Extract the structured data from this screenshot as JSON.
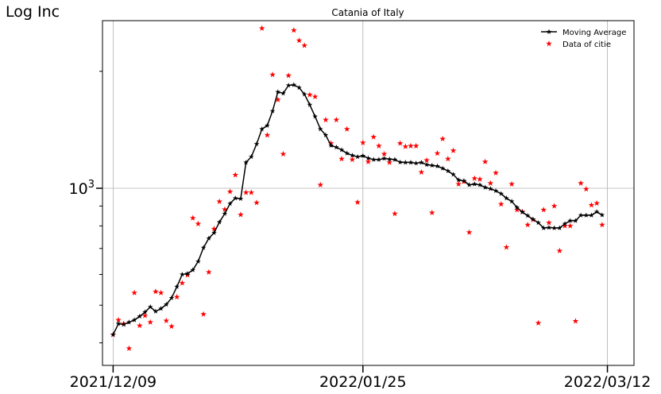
{
  "corner_label": "Log Inc",
  "chart_data": {
    "type": "line",
    "title": "Catania of Italy",
    "xlabel": "",
    "ylabel": "",
    "y_scale": "log",
    "grid": true,
    "legend_placement": "top-right",
    "x_ticks": [
      "2021/12/09",
      "2022/01/25",
      "2022/03/12"
    ],
    "y_ticks": [
      {
        "value": 1000,
        "base": "10",
        "exp": "3"
      }
    ],
    "xlim": [
      "2021/12/07",
      "2022/03/17"
    ],
    "ylim": [
      350,
      2700
    ],
    "series": [
      {
        "name": "Moving Average",
        "color": "#000000",
        "marker": "star",
        "points": [
          [
            "2021/12/09",
            420
          ],
          [
            "2021/12/10",
            448
          ],
          [
            "2021/12/11",
            446
          ],
          [
            "2021/12/12",
            452
          ],
          [
            "2021/12/13",
            458
          ],
          [
            "2021/12/14",
            468
          ],
          [
            "2021/12/15",
            480
          ],
          [
            "2021/12/16",
            495
          ],
          [
            "2021/12/17",
            482
          ],
          [
            "2021/12/18",
            490
          ],
          [
            "2021/12/19",
            502
          ],
          [
            "2021/12/20",
            522
          ],
          [
            "2021/12/21",
            558
          ],
          [
            "2021/12/22",
            600
          ],
          [
            "2021/12/23",
            603
          ],
          [
            "2021/12/24",
            616
          ],
          [
            "2021/12/25",
            648
          ],
          [
            "2021/12/26",
            703
          ],
          [
            "2021/12/27",
            743
          ],
          [
            "2021/12/28",
            768
          ],
          [
            "2021/12/29",
            818
          ],
          [
            "2021/12/30",
            860
          ],
          [
            "2021/12/31",
            913
          ],
          [
            "2022/01/01",
            943
          ],
          [
            "2022/01/02",
            940
          ],
          [
            "2022/01/03",
            1165
          ],
          [
            "2022/01/04",
            1205
          ],
          [
            "2022/01/05",
            1300
          ],
          [
            "2022/01/06",
            1420
          ],
          [
            "2022/01/07",
            1450
          ],
          [
            "2022/01/08",
            1580
          ],
          [
            "2022/01/09",
            1770
          ],
          [
            "2022/01/10",
            1755
          ],
          [
            "2022/01/11",
            1840
          ],
          [
            "2022/01/12",
            1845
          ],
          [
            "2022/01/13",
            1815
          ],
          [
            "2022/01/14",
            1745
          ],
          [
            "2022/01/15",
            1640
          ],
          [
            "2022/01/16",
            1530
          ],
          [
            "2022/01/17",
            1420
          ],
          [
            "2022/01/18",
            1370
          ],
          [
            "2022/01/19",
            1288
          ],
          [
            "2022/01/20",
            1275
          ],
          [
            "2022/01/21",
            1255
          ],
          [
            "2022/01/22",
            1230
          ],
          [
            "2022/01/23",
            1215
          ],
          [
            "2022/01/24",
            1205
          ],
          [
            "2022/01/25",
            1212
          ],
          [
            "2022/01/26",
            1195
          ],
          [
            "2022/01/27",
            1185
          ],
          [
            "2022/01/28",
            1185
          ],
          [
            "2022/01/29",
            1193
          ],
          [
            "2022/01/30",
            1188
          ],
          [
            "2022/01/31",
            1185
          ],
          [
            "2022/02/01",
            1167
          ],
          [
            "2022/02/02",
            1165
          ],
          [
            "2022/02/03",
            1165
          ],
          [
            "2022/02/04",
            1160
          ],
          [
            "2022/02/05",
            1165
          ],
          [
            "2022/02/06",
            1150
          ],
          [
            "2022/02/07",
            1145
          ],
          [
            "2022/02/08",
            1140
          ],
          [
            "2022/02/09",
            1125
          ],
          [
            "2022/02/10",
            1108
          ],
          [
            "2022/02/11",
            1085
          ],
          [
            "2022/02/12",
            1050
          ],
          [
            "2022/02/13",
            1045
          ],
          [
            "2022/02/14",
            1020
          ],
          [
            "2022/02/15",
            1025
          ],
          [
            "2022/02/16",
            1020
          ],
          [
            "2022/02/17",
            1005
          ],
          [
            "2022/02/18",
            997
          ],
          [
            "2022/02/19",
            985
          ],
          [
            "2022/02/20",
            968
          ],
          [
            "2022/02/21",
            943
          ],
          [
            "2022/02/22",
            925
          ],
          [
            "2022/02/23",
            892
          ],
          [
            "2022/02/24",
            868
          ],
          [
            "2022/02/25",
            850
          ],
          [
            "2022/02/26",
            832
          ],
          [
            "2022/02/27",
            815
          ],
          [
            "2022/02/28",
            790
          ],
          [
            "2022/03/01",
            792
          ],
          [
            "2022/03/02",
            790
          ],
          [
            "2022/03/03",
            790
          ],
          [
            "2022/03/04",
            810
          ],
          [
            "2022/03/05",
            825
          ],
          [
            "2022/03/06",
            825
          ],
          [
            "2022/03/07",
            852
          ],
          [
            "2022/03/08",
            852
          ],
          [
            "2022/03/09",
            852
          ],
          [
            "2022/03/10",
            870
          ],
          [
            "2022/03/11",
            853
          ]
        ]
      },
      {
        "name": "Data of citie",
        "color": "#ff0000",
        "marker": "star",
        "points": [
          [
            "2021/12/09",
            420
          ],
          [
            "2021/12/10",
            458
          ],
          [
            "2021/12/11",
            448
          ],
          [
            "2021/12/12",
            387
          ],
          [
            "2021/12/13",
            538
          ],
          [
            "2021/12/14",
            443
          ],
          [
            "2021/12/15",
            470
          ],
          [
            "2021/12/16",
            452
          ],
          [
            "2021/12/17",
            542
          ],
          [
            "2021/12/18",
            538
          ],
          [
            "2021/12/19",
            456
          ],
          [
            "2021/12/20",
            441
          ],
          [
            "2021/12/21",
            525
          ],
          [
            "2021/12/22",
            570
          ],
          [
            "2021/12/23",
            598
          ],
          [
            "2021/12/24",
            838
          ],
          [
            "2021/12/25",
            810
          ],
          [
            "2021/12/26",
            474
          ],
          [
            "2021/12/27",
            608
          ],
          [
            "2021/12/28",
            786
          ],
          [
            "2021/12/29",
            924
          ],
          [
            "2021/12/30",
            882
          ],
          [
            "2021/12/31",
            980
          ],
          [
            "2022/01/01",
            1082
          ],
          [
            "2022/01/02",
            855
          ],
          [
            "2022/01/03",
            975
          ],
          [
            "2022/01/04",
            975
          ],
          [
            "2022/01/05",
            918
          ],
          [
            "2022/01/06",
            2580
          ],
          [
            "2022/01/07",
            1370
          ],
          [
            "2022/01/08",
            1960
          ],
          [
            "2022/01/09",
            1690
          ],
          [
            "2022/01/10",
            1225
          ],
          [
            "2022/01/11",
            1950
          ],
          [
            "2022/01/12",
            2550
          ],
          [
            "2022/01/13",
            2400
          ],
          [
            "2022/01/14",
            2330
          ],
          [
            "2022/01/15",
            1740
          ],
          [
            "2022/01/16",
            1720
          ],
          [
            "2022/01/17",
            1020
          ],
          [
            "2022/01/18",
            1500
          ],
          [
            "2022/01/19",
            1305
          ],
          [
            "2022/01/20",
            1500
          ],
          [
            "2022/01/21",
            1190
          ],
          [
            "2022/01/22",
            1420
          ],
          [
            "2022/01/23",
            1185
          ],
          [
            "2022/01/24",
            920
          ],
          [
            "2022/01/25",
            1310
          ],
          [
            "2022/01/26",
            1170
          ],
          [
            "2022/01/27",
            1355
          ],
          [
            "2022/01/28",
            1285
          ],
          [
            "2022/01/29",
            1225
          ],
          [
            "2022/01/30",
            1165
          ],
          [
            "2022/01/31",
            860
          ],
          [
            "2022/02/01",
            1305
          ],
          [
            "2022/02/02",
            1280
          ],
          [
            "2022/02/03",
            1285
          ],
          [
            "2022/02/04",
            1285
          ],
          [
            "2022/02/05",
            1100
          ],
          [
            "2022/02/06",
            1180
          ],
          [
            "2022/02/07",
            865
          ],
          [
            "2022/02/08",
            1230
          ],
          [
            "2022/02/09",
            1340
          ],
          [
            "2022/02/10",
            1190
          ],
          [
            "2022/02/11",
            1250
          ],
          [
            "2022/02/12",
            1025
          ],
          [
            "2022/02/13",
            1040
          ],
          [
            "2022/02/14",
            770
          ],
          [
            "2022/02/15",
            1060
          ],
          [
            "2022/02/16",
            1055
          ],
          [
            "2022/02/17",
            1170
          ],
          [
            "2022/02/18",
            1030
          ],
          [
            "2022/02/19",
            1095
          ],
          [
            "2022/02/20",
            910
          ],
          [
            "2022/02/21",
            705
          ],
          [
            "2022/02/22",
            1025
          ],
          [
            "2022/02/23",
            880
          ],
          [
            "2022/02/24",
            870
          ],
          [
            "2022/02/25",
            805
          ],
          [
            "2022/02/26",
            830
          ],
          [
            "2022/02/27",
            450
          ],
          [
            "2022/02/28",
            880
          ],
          [
            "2022/03/01",
            815
          ],
          [
            "2022/03/02",
            900
          ],
          [
            "2022/03/03",
            690
          ],
          [
            "2022/03/04",
            800
          ],
          [
            "2022/03/05",
            800
          ],
          [
            "2022/03/06",
            455
          ],
          [
            "2022/03/07",
            1030
          ],
          [
            "2022/03/08",
            995
          ],
          [
            "2022/03/09",
            905
          ],
          [
            "2022/03/10",
            915
          ],
          [
            "2022/03/11",
            805
          ]
        ]
      }
    ]
  }
}
